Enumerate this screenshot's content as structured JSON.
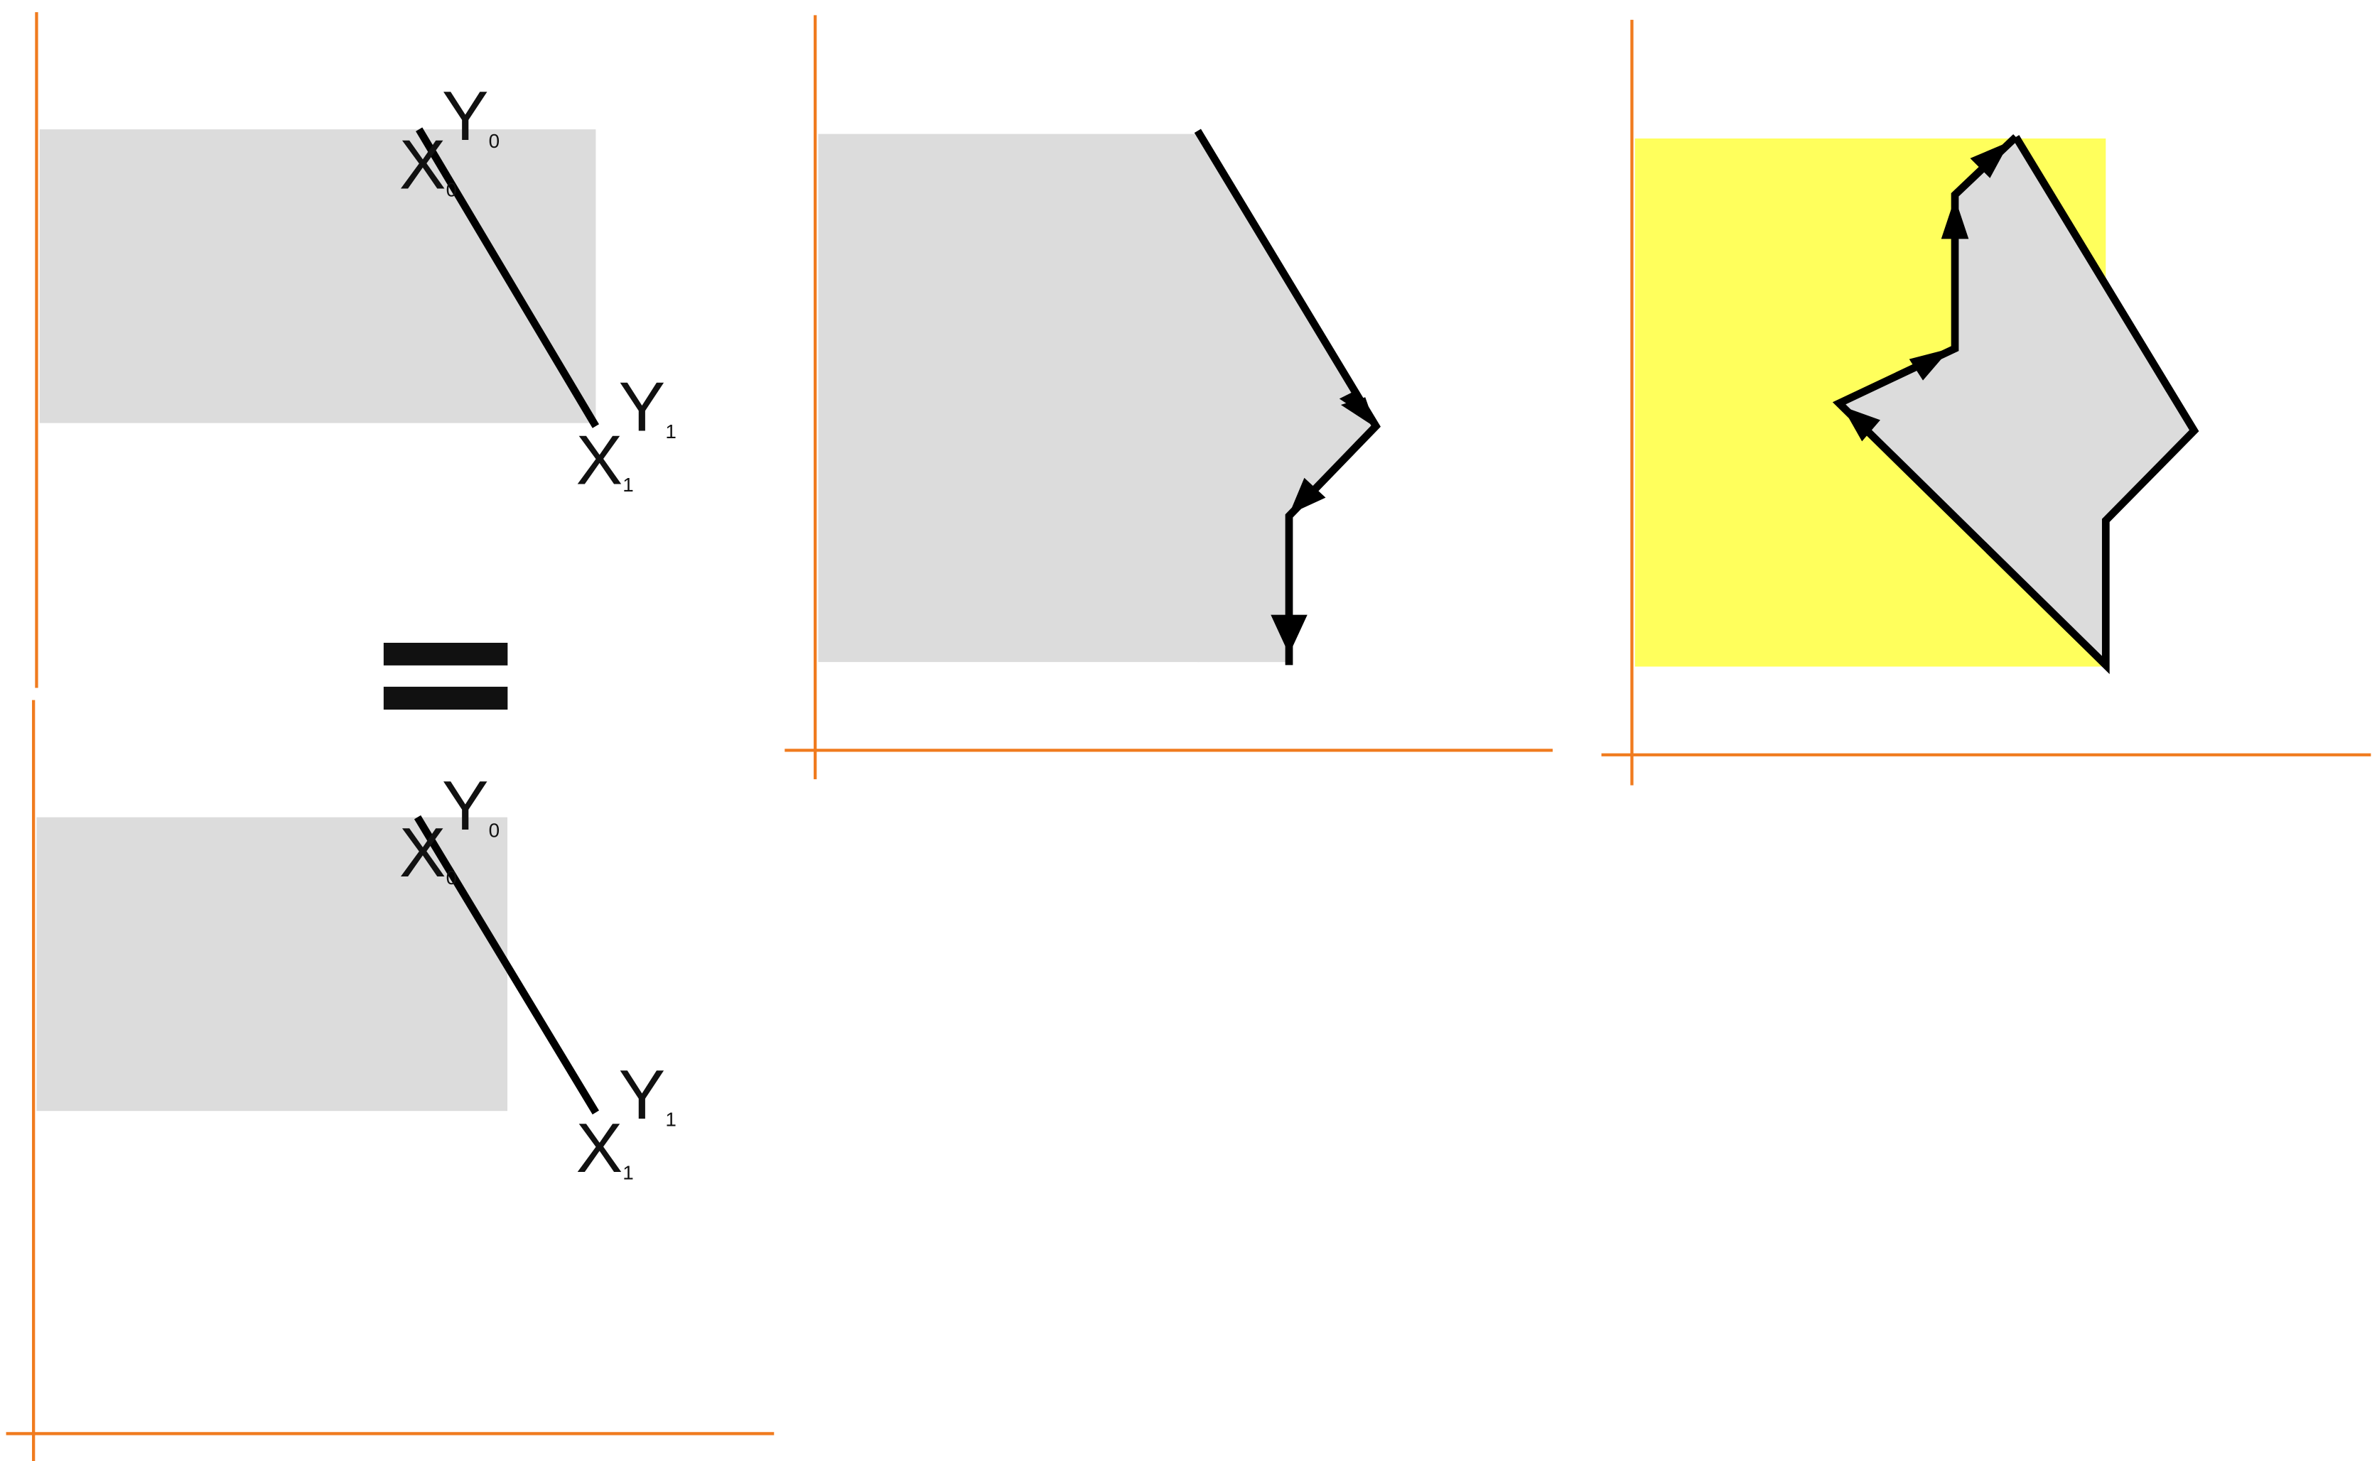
{
  "colors": {
    "axis": "#f07b1e",
    "shade": "#dcdcdc",
    "highlight": "#ffff5c",
    "stroke": "#000000"
  },
  "equals_sign": "=",
  "labels": {
    "y0": {
      "main": "Y",
      "sub": "0"
    },
    "x0": {
      "main": "X",
      "sub": "0"
    },
    "y1": {
      "main": "Y",
      "sub": "1"
    },
    "x1": {
      "main": "X",
      "sub": "1"
    }
  }
}
